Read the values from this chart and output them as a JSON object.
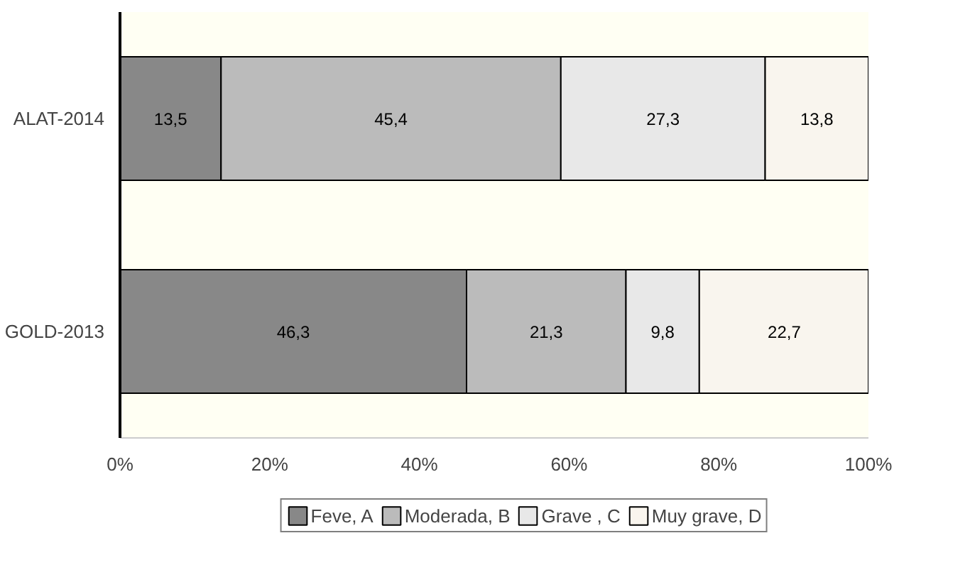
{
  "chart_data": {
    "type": "bar",
    "orientation": "horizontal",
    "stacked": true,
    "categories": [
      "ALAT-2014",
      "GOLD-2013"
    ],
    "series": [
      {
        "name": "Feve, A",
        "color": "#888888",
        "values": [
          13.5,
          46.3
        ],
        "value_labels": [
          "13,5",
          "46,3"
        ]
      },
      {
        "name": "Moderada, B",
        "color": "#bbbbbb",
        "values": [
          45.4,
          21.3
        ],
        "value_labels": [
          "45,4",
          "21,3"
        ]
      },
      {
        "name": "Grave , C",
        "color": "#e8e8e8",
        "values": [
          27.3,
          9.8
        ],
        "value_labels": [
          "27,3",
          "9,8"
        ]
      },
      {
        "name": "Muy grave, D",
        "color": "#f9f5ee",
        "values": [
          13.8,
          22.7
        ],
        "value_labels": [
          "13,8",
          "22,7"
        ]
      }
    ],
    "xlim": [
      0,
      100
    ],
    "xticks": [
      {
        "value": 0,
        "label": "0%"
      },
      {
        "value": 20,
        "label": "20%"
      },
      {
        "value": 40,
        "label": "40%"
      },
      {
        "value": 60,
        "label": "60%"
      },
      {
        "value": 80,
        "label": "80%"
      },
      {
        "value": 100,
        "label": "100%"
      }
    ],
    "grid": false,
    "legend": "bottom"
  }
}
